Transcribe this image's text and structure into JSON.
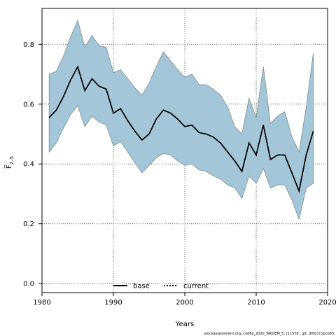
{
  "chart_data": {
    "type": "area",
    "xlabel": "Years",
    "ylabel": "F̅",
    "ylabel_sub": "2–5",
    "xlim": [
      1980,
      2020
    ],
    "ylim": [
      -0.03,
      0.92
    ],
    "xticks": [
      1980,
      1990,
      2000,
      2010,
      2020
    ],
    "yticks": [
      0.0,
      0.2,
      0.4,
      0.6,
      0.8
    ],
    "ytick_labels": [
      "0.0",
      "0.2",
      "0.4",
      "0.6",
      "0.8"
    ],
    "grid": true,
    "grid_style": "dotted",
    "legend_position": "bottom-center",
    "x": [
      1981,
      1982,
      1983,
      1984,
      1985,
      1986,
      1987,
      1988,
      1989,
      1990,
      1991,
      1992,
      1993,
      1994,
      1995,
      1996,
      1997,
      1998,
      1999,
      2000,
      2001,
      2002,
      2003,
      2004,
      2005,
      2006,
      2007,
      2008,
      2009,
      2010,
      2011,
      2012,
      2013,
      2014,
      2015,
      2016,
      2017,
      2018
    ],
    "series": [
      {
        "name": "base",
        "style": "solid",
        "color": "#000000",
        "values": [
          0.555,
          0.58,
          0.625,
          0.68,
          0.725,
          0.645,
          0.685,
          0.66,
          0.65,
          0.57,
          0.585,
          0.545,
          0.51,
          0.48,
          0.5,
          0.55,
          0.58,
          0.57,
          0.55,
          0.525,
          0.53,
          0.505,
          0.5,
          0.49,
          0.47,
          0.44,
          0.41,
          0.375,
          0.47,
          0.43,
          0.53,
          0.415,
          0.43,
          0.43,
          0.37,
          0.31,
          0.43,
          0.51
        ]
      },
      {
        "name": "current",
        "style": "dotted",
        "color": "#000000",
        "values": [
          0.555,
          0.58,
          0.625,
          0.68,
          0.725,
          0.645,
          0.685,
          0.66,
          0.65,
          0.57,
          0.585,
          0.545,
          0.51,
          0.48,
          0.5,
          0.55,
          0.58,
          0.57,
          0.55,
          0.525,
          0.53,
          0.505,
          0.5,
          0.49,
          0.47,
          0.44,
          0.41,
          0.375,
          0.47,
          0.43,
          0.53,
          0.415,
          0.43,
          0.43,
          0.37,
          0.31,
          0.43,
          0.51
        ]
      }
    ],
    "band": {
      "color": "#a3c6d8",
      "edge_color": "#7a8a94",
      "upper": [
        0.7,
        0.71,
        0.76,
        0.825,
        0.88,
        0.79,
        0.83,
        0.795,
        0.79,
        0.705,
        0.715,
        0.685,
        0.655,
        0.63,
        0.67,
        0.725,
        0.775,
        0.745,
        0.715,
        0.69,
        0.7,
        0.665,
        0.665,
        0.65,
        0.63,
        0.59,
        0.525,
        0.5,
        0.62,
        0.555,
        0.725,
        0.535,
        0.56,
        0.575,
        0.49,
        0.44,
        0.59,
        0.77
      ],
      "lower": [
        0.44,
        0.47,
        0.52,
        0.565,
        0.595,
        0.525,
        0.56,
        0.54,
        0.53,
        0.46,
        0.475,
        0.44,
        0.405,
        0.37,
        0.395,
        0.42,
        0.435,
        0.43,
        0.41,
        0.395,
        0.4,
        0.38,
        0.375,
        0.36,
        0.35,
        0.33,
        0.32,
        0.285,
        0.36,
        0.335,
        0.385,
        0.32,
        0.33,
        0.33,
        0.28,
        0.215,
        0.32,
        0.335
      ]
    },
    "footer": "stockassessment.org, cod6a_2020_WKDEM_5, r11578 , git: df0b7c1bcb83"
  }
}
